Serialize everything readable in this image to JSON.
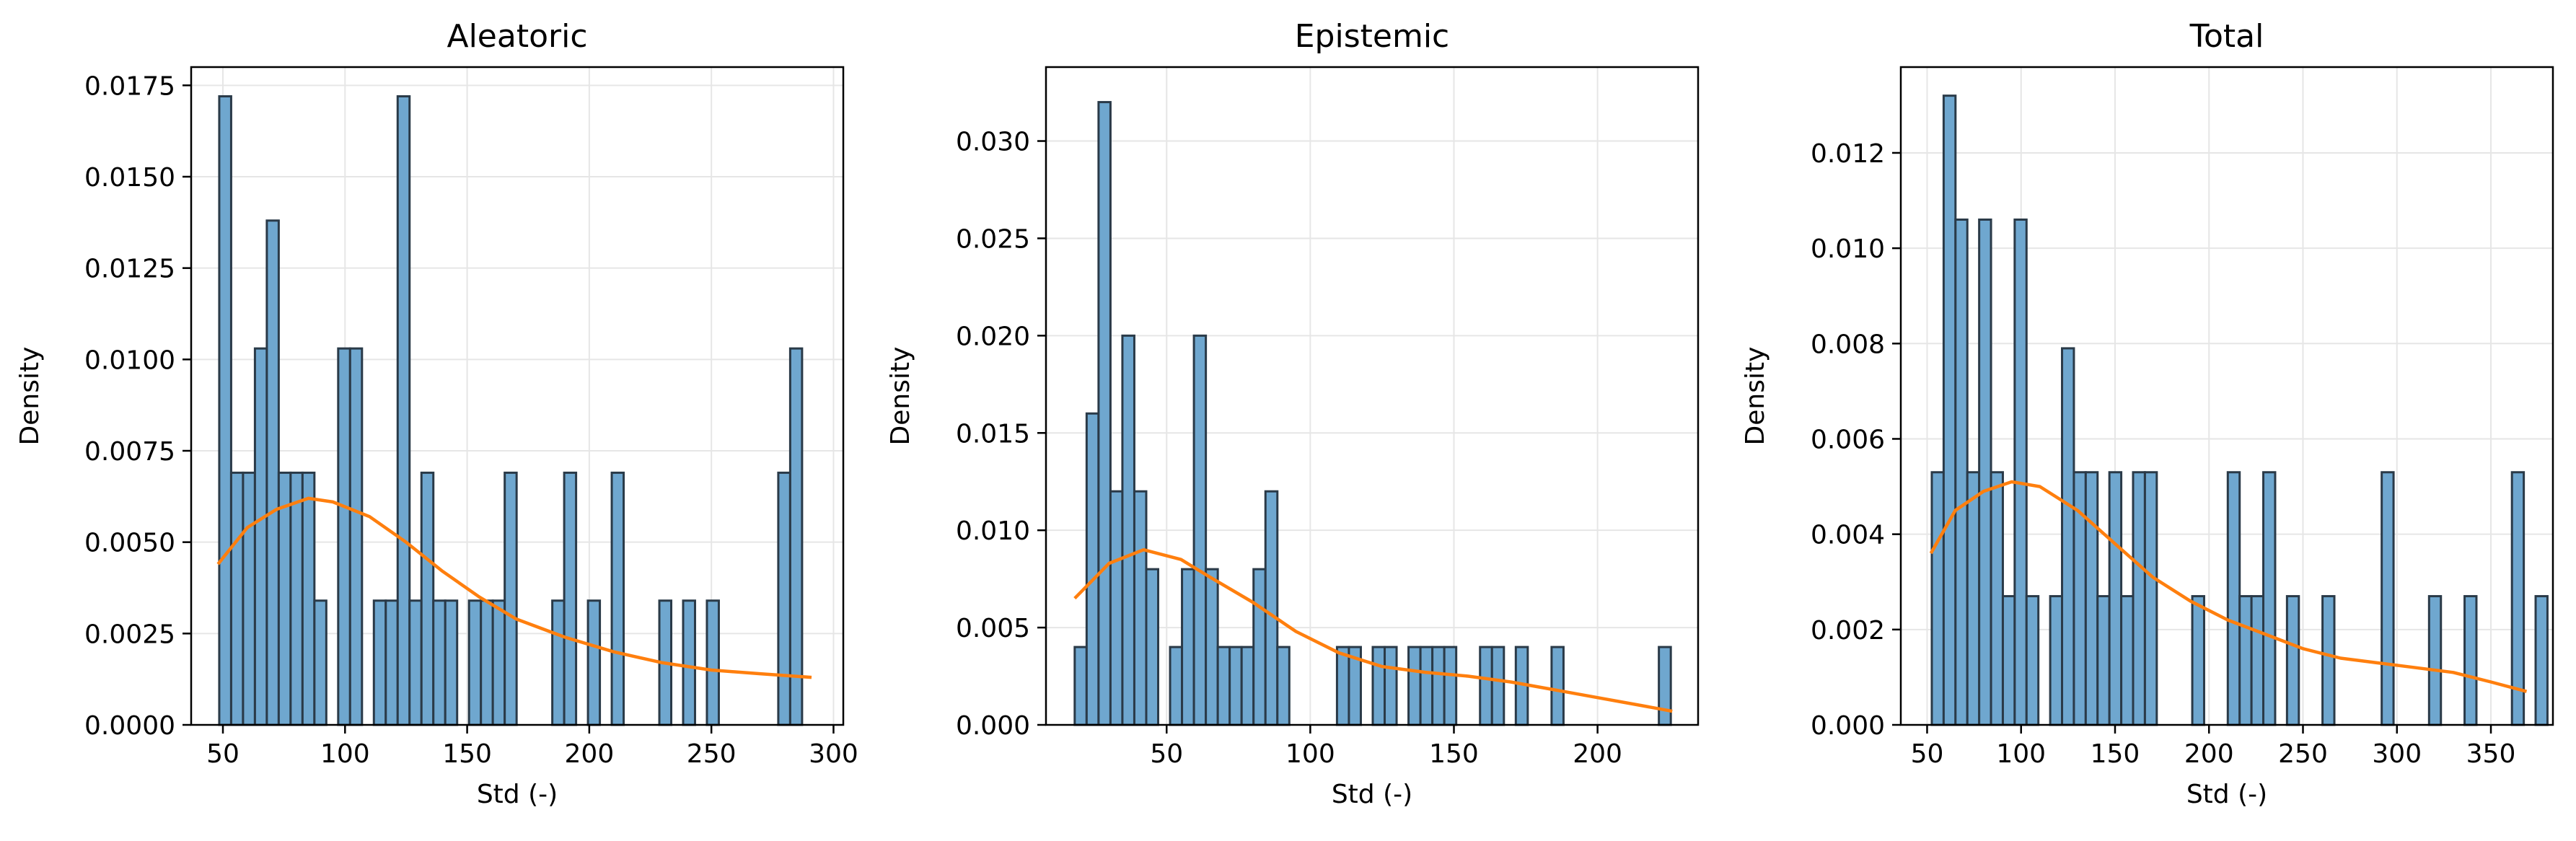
{
  "chart_data": [
    {
      "type": "bar",
      "title": "Aleatoric",
      "xlabel": "Std (-)",
      "ylabel": "Density",
      "xlim": [
        37,
        304
      ],
      "ylim": [
        0,
        0.018
      ],
      "xticks": [
        50,
        100,
        150,
        200,
        250,
        300
      ],
      "xtick_labels": [
        "50",
        "100",
        "150",
        "200",
        "250",
        "300"
      ],
      "yticks": [
        0,
        0.0025,
        0.005,
        0.0075,
        0.01,
        0.0125,
        0.015,
        0.0175
      ],
      "ytick_labels": [
        "0.0000",
        "0.0025",
        "0.0050",
        "0.0075",
        "0.0100",
        "0.0125",
        "0.0150",
        "0.0175"
      ],
      "grid": true,
      "bin_start": 48.5,
      "bin_width": 4.87,
      "values": [
        0.0172,
        0.0069,
        0.0069,
        0.0103,
        0.0138,
        0.0069,
        0.0069,
        0.0069,
        0.0034,
        0,
        0.0103,
        0.0103,
        0,
        0.0034,
        0.0034,
        0.0172,
        0.0034,
        0.0069,
        0.0034,
        0.0034,
        0,
        0.0034,
        0.0034,
        0.0034,
        0.0069,
        0,
        0,
        0,
        0.0034,
        0.0069,
        0,
        0.0034,
        0,
        0.0069,
        0,
        0,
        0,
        0.0034,
        0,
        0.0034,
        0,
        0.0034,
        0,
        0,
        0,
        0,
        0,
        0.0069,
        0.0103
      ],
      "kde": {
        "x": [
          48,
          60,
          72,
          85,
          95,
          110,
          125,
          140,
          155,
          170,
          190,
          210,
          230,
          250,
          270,
          291
        ],
        "y": [
          0.0044,
          0.0054,
          0.0059,
          0.0062,
          0.0061,
          0.0057,
          0.005,
          0.0042,
          0.0035,
          0.0029,
          0.0024,
          0.002,
          0.0017,
          0.0015,
          0.0014,
          0.0013
        ]
      }
    },
    {
      "type": "bar",
      "title": "Epistemic",
      "xlabel": "Std (-)",
      "ylabel": "Density",
      "xlim": [
        8,
        235
      ],
      "ylim": [
        0,
        0.0338
      ],
      "xticks": [
        50,
        100,
        150,
        200
      ],
      "xtick_labels": [
        "50",
        "100",
        "150",
        "200"
      ],
      "yticks": [
        0,
        0.005,
        0.01,
        0.015,
        0.02,
        0.025,
        0.03
      ],
      "ytick_labels": [
        "0.000",
        "0.005",
        "0.010",
        "0.015",
        "0.020",
        "0.025",
        "0.030"
      ],
      "grid": true,
      "bin_start": 18,
      "bin_width": 4.15,
      "values": [
        0.004,
        0.016,
        0.032,
        0.012,
        0.02,
        0.012,
        0.008,
        0,
        0.004,
        0.008,
        0.02,
        0.008,
        0.004,
        0.004,
        0.004,
        0.008,
        0.012,
        0.004,
        0,
        0,
        0,
        0,
        0.004,
        0.004,
        0,
        0.004,
        0.004,
        0,
        0.004,
        0.004,
        0.004,
        0.004,
        0,
        0,
        0.004,
        0.004,
        0,
        0.004,
        0,
        0,
        0.004,
        0,
        0,
        0,
        0,
        0,
        0,
        0,
        0,
        0.004
      ],
      "kde": {
        "x": [
          18,
          30,
          42,
          55,
          65,
          80,
          95,
          110,
          125,
          140,
          155,
          170,
          185,
          200,
          215,
          226
        ],
        "y": [
          0.0065,
          0.0083,
          0.009,
          0.0085,
          0.0076,
          0.0063,
          0.0048,
          0.0037,
          0.003,
          0.0027,
          0.0025,
          0.0022,
          0.0018,
          0.0014,
          0.001,
          0.0007
        ]
      }
    },
    {
      "type": "bar",
      "title": "Total",
      "xlabel": "Std (-)",
      "ylabel": "Density",
      "xlim": [
        36,
        383
      ],
      "ylim": [
        0,
        0.0138
      ],
      "xticks": [
        50,
        100,
        150,
        200,
        250,
        300,
        350
      ],
      "xtick_labels": [
        "50",
        "100",
        "150",
        "200",
        "250",
        "300",
        "350"
      ],
      "yticks": [
        0,
        0.002,
        0.004,
        0.006,
        0.008,
        0.01,
        0.012
      ],
      "ytick_labels": [
        "0.000",
        "0.002",
        "0.004",
        "0.006",
        "0.008",
        "0.010",
        "0.012"
      ],
      "grid": true,
      "bin_start": 52.5,
      "bin_width": 6.3,
      "values": [
        0.0053,
        0.0132,
        0.0106,
        0.0053,
        0.0106,
        0.0053,
        0.0027,
        0.0106,
        0.0027,
        0,
        0.0027,
        0.0079,
        0.0053,
        0.0053,
        0.0027,
        0.0053,
        0.0027,
        0.0053,
        0.0053,
        0,
        0,
        0,
        0.0027,
        0,
        0,
        0.0053,
        0.0027,
        0.0027,
        0.0053,
        0,
        0.0027,
        0,
        0,
        0.0027,
        0,
        0,
        0,
        0,
        0.0053,
        0,
        0,
        0,
        0.0027,
        0,
        0,
        0.0027,
        0,
        0,
        0,
        0.0053,
        0,
        0.0027
      ],
      "kde": {
        "x": [
          52,
          65,
          80,
          95,
          110,
          130,
          150,
          170,
          190,
          210,
          230,
          250,
          270,
          290,
          310,
          330,
          350,
          369
        ],
        "y": [
          0.0036,
          0.0045,
          0.0049,
          0.0051,
          0.005,
          0.0045,
          0.0038,
          0.0031,
          0.0026,
          0.0022,
          0.0019,
          0.0016,
          0.0014,
          0.0013,
          0.0012,
          0.0011,
          0.0009,
          0.0007
        ]
      }
    }
  ]
}
